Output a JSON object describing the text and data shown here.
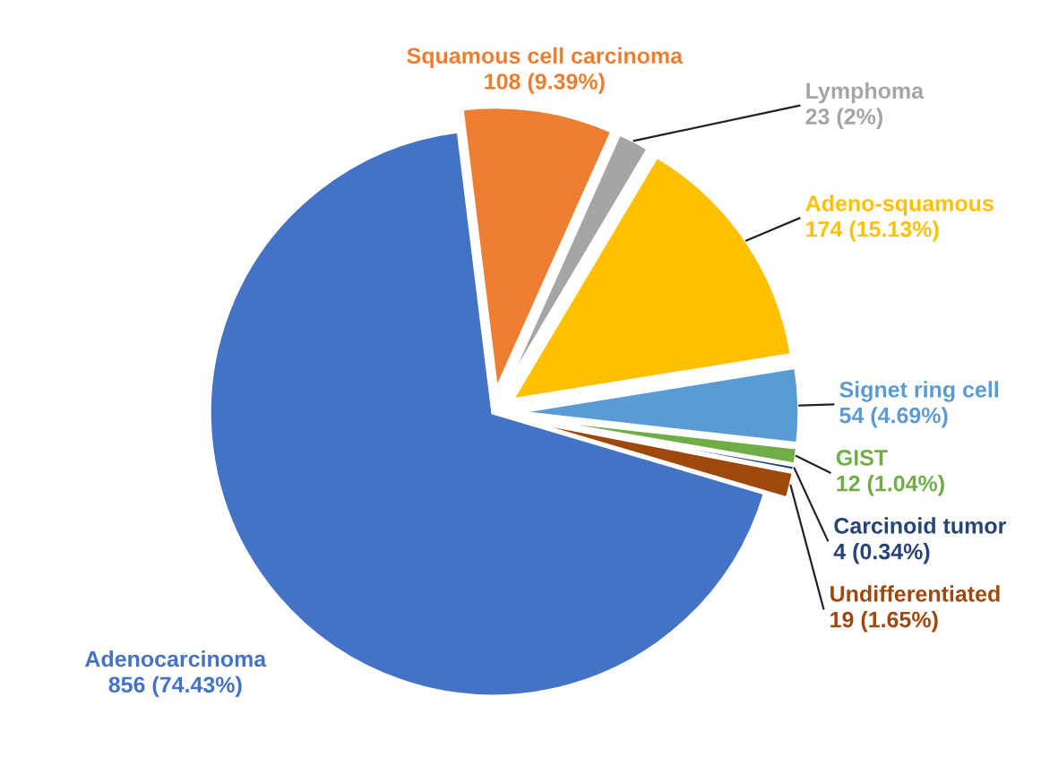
{
  "chart_data": {
    "type": "pie",
    "categories": [
      "Squamous cell carcinoma",
      "Lymphoma",
      "Adeno-squamous",
      "Signet ring cell",
      "GIST",
      "Carcinoid tumor",
      "Undifferentiated",
      "Adenocarcinoma"
    ],
    "values": [
      108,
      23,
      174,
      54,
      12,
      4,
      19,
      856
    ],
    "value_labels": [
      "108 (9.39%)",
      "23 (2%)",
      "174 (15.13%)",
      "54 (4.69%)",
      "12 (1.04%)",
      "4 (0.34%)",
      "19 (1.65%)",
      "856 (74.43%)"
    ],
    "colors": [
      "#ed7d31",
      "#a5a5a5",
      "#ffc000",
      "#5b9bd5",
      "#70ad47",
      "#264478",
      "#9e480e",
      "#4472c4"
    ],
    "legend": false
  }
}
